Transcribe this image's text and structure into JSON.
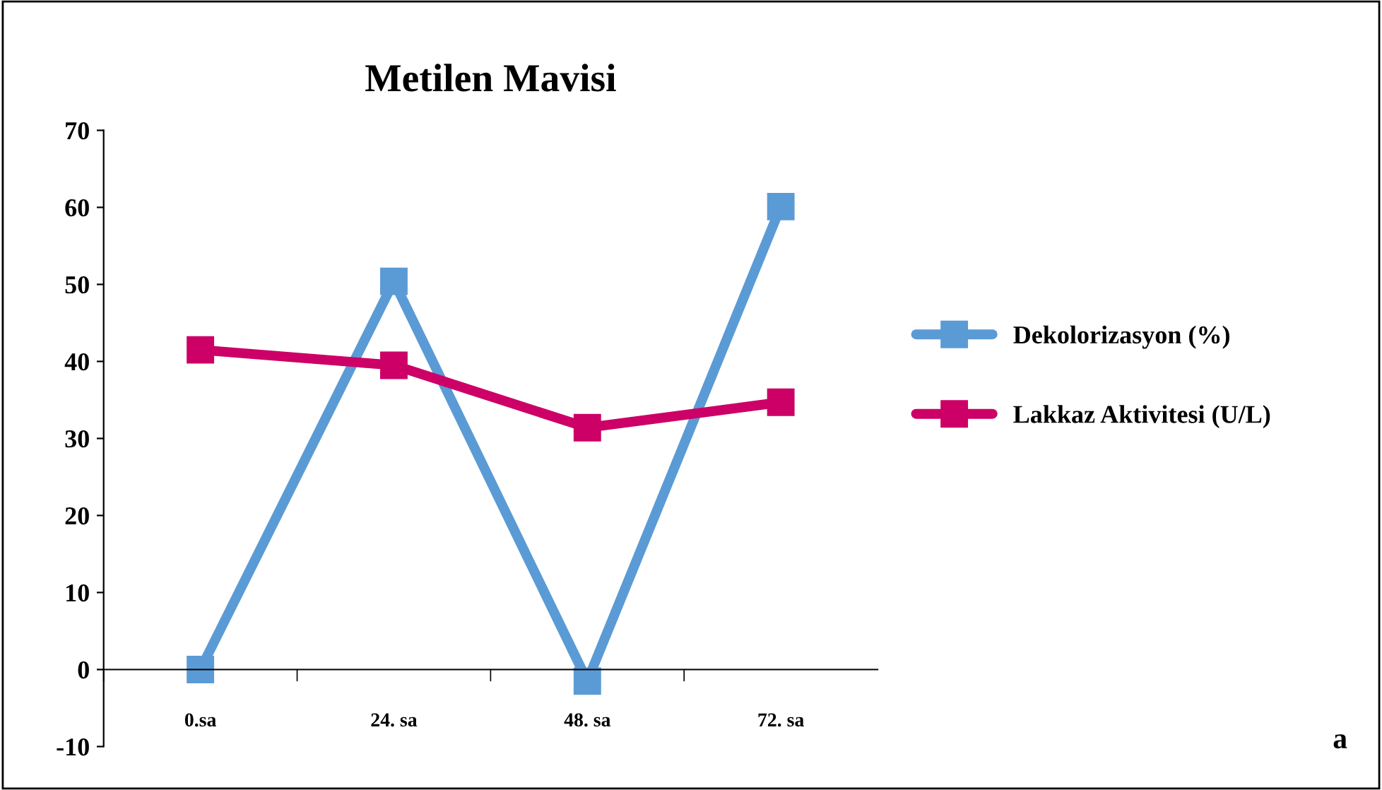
{
  "chart_data": {
    "type": "line",
    "title": "Metilen Mavisi",
    "categories": [
      "0.sa",
      "24. sa",
      "48. sa",
      "72. sa"
    ],
    "series": [
      {
        "name": "Dekolorizasyon (%)",
        "color": "#5b9bd5",
        "values": [
          0,
          50.4,
          -1.5,
          60.1
        ]
      },
      {
        "name": "Lakkaz Aktivitesi (U/L)",
        "color": "#cc0066",
        "values": [
          41.5,
          39.5,
          31.4,
          34.7
        ]
      }
    ],
    "ylim": [
      -10,
      70
    ],
    "yticks": [
      -10,
      0,
      10,
      20,
      30,
      40,
      50,
      60,
      70
    ],
    "marker": "square",
    "legend": "right",
    "grid": false,
    "annotations": [
      "a"
    ]
  }
}
